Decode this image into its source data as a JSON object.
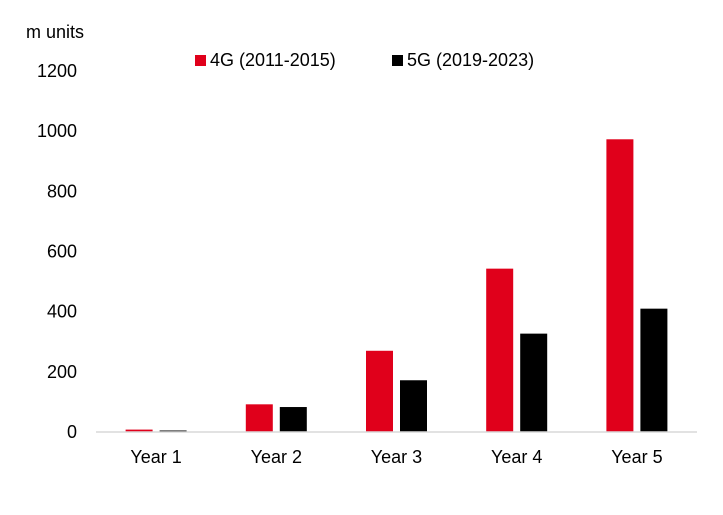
{
  "chart_data": {
    "type": "bar",
    "ylabel": "m units",
    "categories": [
      "Year 1",
      "Year 2",
      "Year 3",
      "Year 4",
      "Year 5"
    ],
    "series": [
      {
        "name": "4G (2011-2015)",
        "color": "#e0001b",
        "values": [
          8,
          92,
          270,
          543,
          973
        ]
      },
      {
        "name": "5G (2019-2023)",
        "color": "#000000",
        "values": [
          5,
          83,
          172,
          327,
          410
        ]
      }
    ],
    "ylim": [
      0,
      1200
    ],
    "yticks": [
      "0",
      "200",
      "400",
      "600",
      "800",
      "1000",
      "1200"
    ],
    "grid": false,
    "legend_position": "top"
  }
}
